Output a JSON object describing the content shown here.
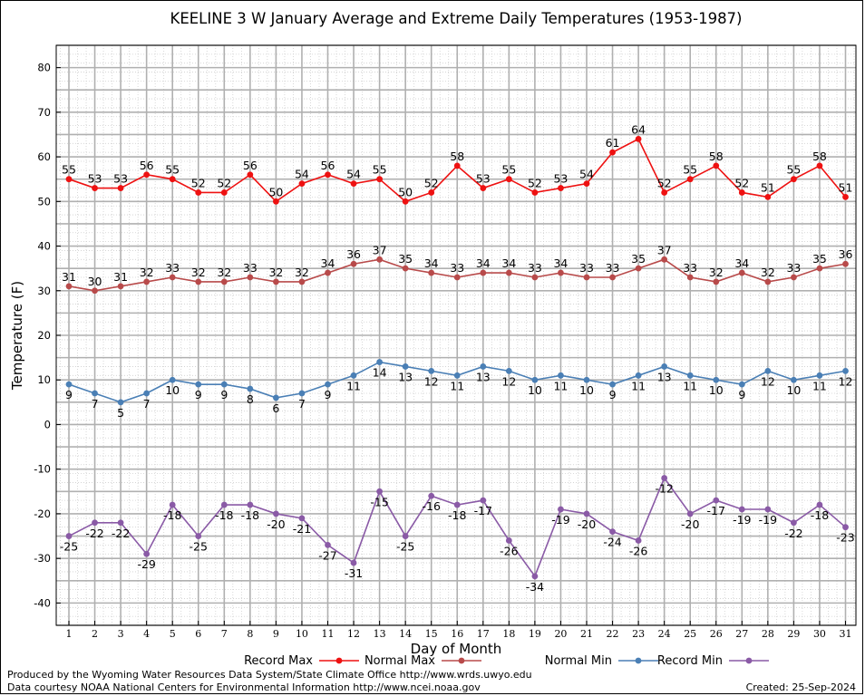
{
  "chart_data": {
    "type": "line",
    "title": "KEELINE 3 W January Average and Extreme Daily Temperatures (1953-1987)",
    "xlabel": "Day of Month",
    "ylabel": "Temperature (F)",
    "ylim": [
      -45,
      85
    ],
    "yticks": [
      -40,
      -30,
      -20,
      -10,
      0,
      10,
      20,
      30,
      40,
      50,
      60,
      70,
      80
    ],
    "x": [
      1,
      2,
      3,
      4,
      5,
      6,
      7,
      8,
      9,
      10,
      11,
      12,
      13,
      14,
      15,
      16,
      17,
      18,
      19,
      20,
      21,
      22,
      23,
      24,
      25,
      26,
      27,
      28,
      29,
      30,
      31
    ],
    "grid": true,
    "legend_position": "bottom",
    "series": [
      {
        "name": "Record Max",
        "color": "#ee1111",
        "label_pos": "above",
        "values": [
          55,
          53,
          53,
          56,
          55,
          52,
          52,
          56,
          50,
          54,
          56,
          54,
          55,
          50,
          52,
          58,
          53,
          55,
          52,
          53,
          54,
          61,
          64,
          52,
          55,
          58,
          52,
          51,
          55,
          58,
          51
        ]
      },
      {
        "name": "Normal Max",
        "color": "#b84a4a",
        "label_pos": "above",
        "values": [
          31,
          30,
          31,
          32,
          33,
          32,
          32,
          33,
          32,
          32,
          34,
          36,
          37,
          35,
          34,
          33,
          34,
          34,
          33,
          34,
          33,
          33,
          35,
          37,
          33,
          32,
          34,
          32,
          33,
          35,
          36
        ]
      },
      {
        "name": "Normal Min",
        "color": "#4a7fb5",
        "label_pos": "below",
        "values": [
          9,
          7,
          5,
          7,
          10,
          9,
          9,
          8,
          6,
          7,
          9,
          11,
          14,
          13,
          12,
          11,
          13,
          12,
          10,
          11,
          10,
          9,
          11,
          13,
          11,
          10,
          9,
          12,
          10,
          11,
          12
        ]
      },
      {
        "name": "Record Min",
        "color": "#8a5aa6",
        "label_pos": "below",
        "values": [
          -25,
          -22,
          -22,
          -29,
          -18,
          -25,
          -18,
          -18,
          -20,
          -21,
          -27,
          -31,
          -15,
          -25,
          -16,
          -18,
          -17,
          -26,
          -34,
          -19,
          -20,
          -24,
          -26,
          -12,
          -20,
          -17,
          -19,
          -19,
          -22,
          -18,
          -23
        ]
      }
    ]
  },
  "footer": {
    "produced_by": "Produced by the Wyoming Water Resources Data System/State Climate Office http://www.wrds.uwyo.edu",
    "data_courtesy": "Data courtesy NOAA National Centers for Environmental Information http://www.ncei.noaa.gov",
    "created": "Created:  25-Sep-2024"
  }
}
